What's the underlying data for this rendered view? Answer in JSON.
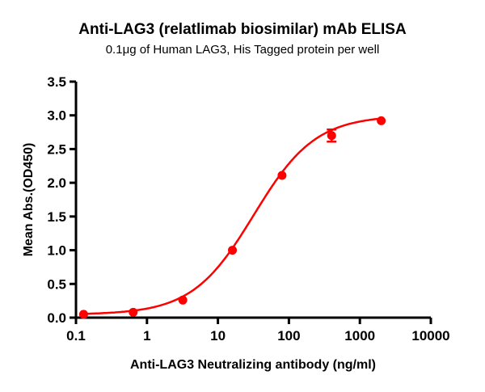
{
  "chart_data": {
    "type": "scatter",
    "title": "Anti-LAG3 (relatlimab biosimilar) mAb ELISA",
    "subtitle": "0.1μg of Human LAG3, His Tagged protein per well",
    "xlabel": "Anti-LAG3 Neutralizing antibody (ng/ml)",
    "ylabel": "Mean Abs.(OD450)",
    "xscale": "log",
    "xlim": [
      0.1,
      10000
    ],
    "ylim": [
      0,
      3.5
    ],
    "xticks": [
      "0.1",
      "1",
      "10",
      "100",
      "1000",
      "10000"
    ],
    "xtick_values": [
      0.1,
      1,
      10,
      100,
      1000,
      10000
    ],
    "yticks": [
      "0.0",
      "0.5",
      "1.0",
      "1.5",
      "2.0",
      "2.5",
      "3.0",
      "3.5"
    ],
    "ytick_values": [
      0,
      0.5,
      1.0,
      1.5,
      2.0,
      2.5,
      3.0,
      3.5
    ],
    "grid": false,
    "color": "#ff0000",
    "series": [
      {
        "x": [
          0.128,
          0.64,
          3.2,
          16,
          80,
          400,
          2000
        ],
        "y": [
          0.05,
          0.08,
          0.26,
          1.0,
          2.11,
          2.7,
          2.92
        ],
        "error": [
          0,
          0,
          0,
          0,
          0,
          0.09,
          0
        ],
        "fit": "sigmoidal curve"
      }
    ]
  }
}
